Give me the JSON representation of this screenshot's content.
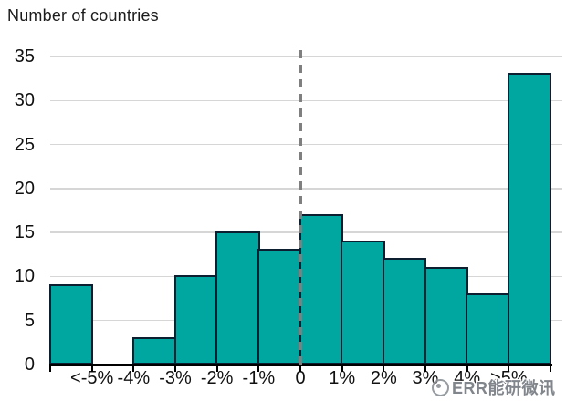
{
  "watermark": {
    "text": "ERR能研微讯",
    "logo": "circle-dot-logo"
  },
  "colors": {
    "bar_fill": "#00A7A0",
    "bar_border": "#0B1F30",
    "gridline": "#D6D6D6",
    "axis": "#000000",
    "zero_dashed_line": "#7F7F7F",
    "text": "#1C1C1C",
    "watermark_text": "#8F9499"
  },
  "chart_data": {
    "type": "bar",
    "subtype": "histogram",
    "title": "Number of countries",
    "xlabel": "",
    "ylabel": "Number of countries",
    "bins": [
      "<-5%",
      "-5% to -4%",
      "-4% to -3%",
      "-3% to -2%",
      "-2% to -1%",
      "-1% to 0",
      "0 to 1%",
      "1% to 2%",
      "2% to 3%",
      "3% to 4%",
      "4% to 5%",
      ">5%"
    ],
    "values": [
      9,
      0,
      3,
      10,
      15,
      13,
      17,
      14,
      12,
      11,
      8,
      33
    ],
    "edge_labels": [
      "<-5%",
      "-4%",
      "-3%",
      "-2%",
      "-1%",
      "0",
      "1%",
      "2%",
      "3%",
      "4%",
      ">5%"
    ],
    "yticks": [
      0,
      5,
      10,
      15,
      20,
      25,
      30,
      35
    ],
    "ylim": [
      0,
      35
    ],
    "grid": "horizontal",
    "legend": "none",
    "annotations": [
      "dashed vertical reference line at 0"
    ]
  }
}
